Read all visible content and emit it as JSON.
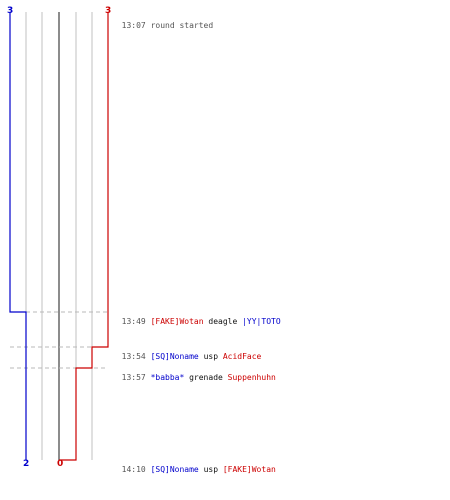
{
  "score": {
    "blue_start": "3",
    "red_start": "3",
    "blue_end": "2",
    "red_end": "0"
  },
  "events": [
    {
      "time": "13:07",
      "text": "round started",
      "kind": "start"
    },
    {
      "time": "13:49",
      "killer": "[FAKE]Wotan",
      "weapon": "deagle",
      "victim": "|YY|TOTO",
      "killer_team": "red",
      "victim_team": "blue"
    },
    {
      "time": "13:54",
      "killer": "[SQ]Noname",
      "weapon": "usp",
      "victim": "AcidFace",
      "killer_team": "blue",
      "victim_team": "red"
    },
    {
      "time": "13:57",
      "killer": "*babba*",
      "weapon": "grenade",
      "victim": "Suppenhuhn",
      "killer_team": "blue",
      "victim_team": "red"
    },
    {
      "time": "14:10",
      "killer": "[SQ]Noname",
      "weapon": "usp",
      "victim": "[FAKE]Wotan",
      "killer_team": "blue",
      "victim_team": "red"
    }
  ],
  "colors": {
    "blue_team": "#0000cc",
    "red_team": "#cc0000",
    "grid": "#c0c0c0",
    "center_line": "#666666"
  }
}
